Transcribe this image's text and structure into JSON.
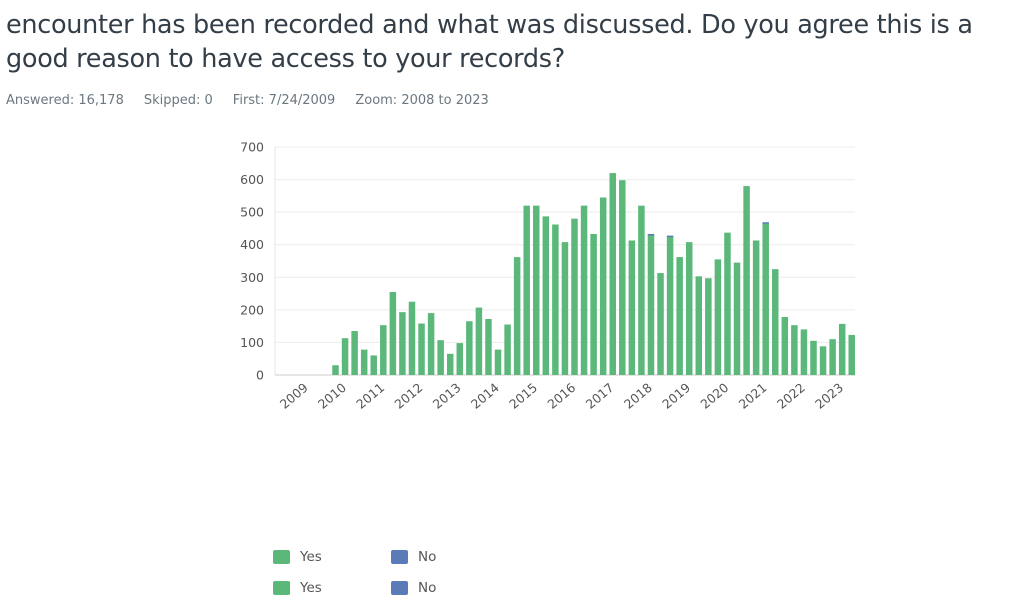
{
  "question": "encounter has been recorded and what was discussed. Do you agree this is a good reason to have access to your records?",
  "meta": {
    "answered": "Answered: 16,178",
    "skipped": "Skipped: 0",
    "first": "First: 7/24/2009",
    "zoom": "Zoom: 2008 to 2023"
  },
  "chart_data": {
    "type": "bar",
    "stacked": true,
    "ylim": [
      0,
      700
    ],
    "yticks": [
      0,
      100,
      200,
      300,
      400,
      500,
      600,
      700
    ],
    "xticks": [
      "2009",
      "2010",
      "2011",
      "2012",
      "2013",
      "2014",
      "2015",
      "2016",
      "2017",
      "2018",
      "2019",
      "2020",
      "2021",
      "2022",
      "2023"
    ],
    "grid": true,
    "series": [
      {
        "name": "Yes",
        "color": "#5cb87a",
        "values": [
          30,
          113,
          135,
          78,
          60,
          153,
          255,
          193,
          225,
          158,
          190,
          107,
          65,
          98,
          165,
          207,
          172,
          78,
          155,
          362,
          520,
          520,
          487,
          462,
          408,
          480,
          520,
          433,
          545,
          620,
          598,
          413,
          520,
          430,
          313,
          425,
          362,
          408,
          303,
          297,
          355,
          437,
          345,
          580,
          413,
          465,
          325,
          178,
          153,
          140,
          105,
          88,
          110,
          157,
          123
        ]
      },
      {
        "name": "No",
        "color": "#5b7bb8",
        "values": [
          0,
          0,
          0,
          0,
          0,
          0,
          0,
          0,
          0,
          0,
          0,
          0,
          0,
          0,
          0,
          0,
          0,
          0,
          0,
          0,
          0,
          0,
          0,
          0,
          0,
          0,
          0,
          0,
          0,
          0,
          0,
          0,
          0,
          3,
          0,
          3,
          0,
          0,
          0,
          0,
          0,
          0,
          0,
          0,
          0,
          4,
          0,
          0,
          0,
          0,
          0,
          0,
          0,
          0,
          0
        ]
      }
    ],
    "legend": [
      {
        "label": "Yes",
        "color": "#5cb87a"
      },
      {
        "label": "No",
        "color": "#5b7bb8"
      },
      {
        "label": "Yes",
        "color": "#5cb87a"
      },
      {
        "label": "No",
        "color": "#5b7bb8"
      }
    ],
    "legend_position": "bottom"
  }
}
